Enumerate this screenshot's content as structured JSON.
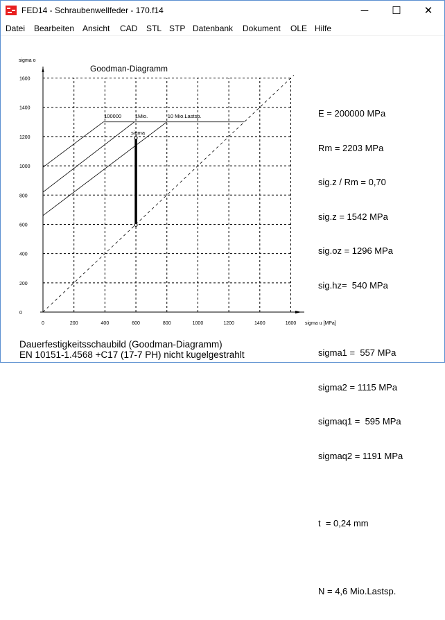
{
  "window": {
    "title": "FED14 - Schraubenwellfeder  -  170.f14",
    "controls": {
      "minimize": "─",
      "maximize": "☐",
      "close": "✕"
    }
  },
  "menu": [
    {
      "label": "Datei",
      "accel": "D"
    },
    {
      "label": "Bearbeiten",
      "accel": "B"
    },
    {
      "label": "Ansicht",
      "accel": "A"
    },
    {
      "label": "CAD",
      "accel": "C"
    },
    {
      "label": "STL",
      "accel": "S"
    },
    {
      "label": "STP",
      "accel": "T"
    },
    {
      "label": "Datenbank",
      "accel": "k"
    },
    {
      "label": "Dokument",
      "accel": "o"
    },
    {
      "label": "OLE",
      "accel": "L"
    },
    {
      "label": "Hilfe",
      "accel": "H"
    }
  ],
  "chart_data": {
    "type": "line",
    "title": "Goodman-Diagramm",
    "xlabel": "sigma u [MPa]",
    "ylabel": "sigma o",
    "xlim": [
      0,
      1600
    ],
    "ylim": [
      0,
      1600
    ],
    "xticks": [
      0,
      200,
      400,
      600,
      800,
      1000,
      1200,
      1400,
      1600
    ],
    "yticks": [
      0,
      200,
      400,
      600,
      800,
      1000,
      1200,
      1400,
      1600
    ],
    "grid": true,
    "series": [
      {
        "name": "100000",
        "style": "solid",
        "points": [
          [
            0,
            990
          ],
          [
            390,
            1300
          ]
        ]
      },
      {
        "name": "1Mio.",
        "style": "solid",
        "points": [
          [
            0,
            820
          ],
          [
            590,
            1300
          ]
        ]
      },
      {
        "name": "10 Mio.Lastsp.",
        "style": "solid",
        "points": [
          [
            0,
            660
          ],
          [
            800,
            1300
          ]
        ]
      },
      {
        "style": "solid",
        "points": [
          [
            390,
            1300
          ],
          [
            1300,
            1300
          ]
        ]
      },
      {
        "style": "dashed",
        "points": [
          [
            0,
            0
          ],
          [
            1620,
            1620
          ]
        ]
      },
      {
        "name": "sigma",
        "style": "thick",
        "points": [
          [
            600,
            595
          ],
          [
            600,
            1191
          ]
        ]
      }
    ]
  },
  "info": {
    "lines1": [
      "E = 200000 MPa",
      "Rm = 2203 MPa",
      "sig.z / Rm = 0,70",
      "sig.z = 1542 MPa",
      "sig.oz = 1296 MPa",
      "sig.hz=  540 MPa"
    ],
    "lines2": [
      "sigma1 =  557 MPa",
      "sigma2 = 1115 MPa",
      "sigmaq1 =  595 MPa",
      "sigmaq2 = 1191 MPa"
    ],
    "t": "t  = 0,24 mm",
    "n": "N = 4,6 Mio.Lastsp."
  },
  "caption": {
    "line1": "Dauerfestigkeitsschaubild (Goodman-Diagramm)",
    "line2": "EN 10151-1.4568 +C17 (17-7 PH) nicht kugelgestrahlt"
  }
}
